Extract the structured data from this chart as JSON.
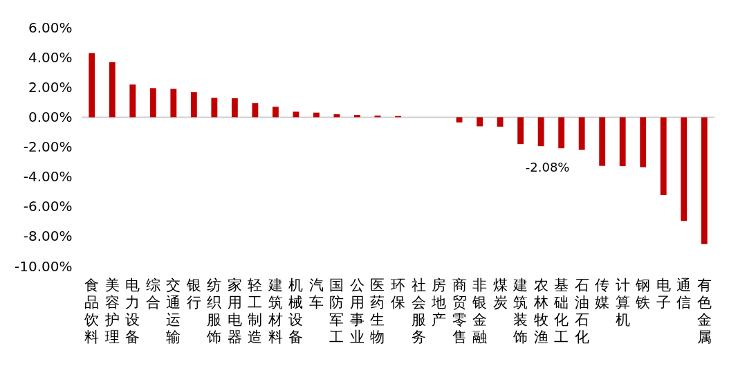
{
  "chart_data": {
    "type": "bar",
    "categories": [
      "食品饮料",
      "美容护理",
      "电力设备",
      "综合",
      "交通运输",
      "银行",
      "纺织服饰",
      "家用电器",
      "轻工制造",
      "建筑材料",
      "机械设备",
      "汽车",
      "国防军工",
      "公用事业",
      "医药生物",
      "环保",
      "社会服务",
      "房地产",
      "商贸零售",
      "非银金融",
      "煤炭",
      "建筑装饰",
      "农林牧渔",
      "基础化工",
      "石油石化",
      "传媒",
      "计算机",
      "钢铁",
      "电子",
      "通信",
      "有色金属"
    ],
    "values": [
      4.29,
      3.69,
      2.19,
      1.95,
      1.9,
      1.68,
      1.3,
      1.27,
      0.94,
      0.7,
      0.37,
      0.31,
      0.2,
      0.15,
      0.11,
      0.08,
      0,
      0,
      -0.35,
      -0.61,
      -0.64,
      -1.8,
      -1.94,
      -2.08,
      -2.19,
      -3.26,
      -3.28,
      -3.35,
      -5.22,
      -6.95,
      -8.51
    ],
    "color": "#c00000",
    "ylim": [
      -10,
      6
    ],
    "yticks": [
      {
        "value": 6,
        "label": "6.00%"
      },
      {
        "value": 4,
        "label": "4.00%"
      },
      {
        "value": 2,
        "label": "2.00%"
      },
      {
        "value": 0,
        "label": "0.00%"
      },
      {
        "value": -2,
        "label": "-2.00%"
      },
      {
        "value": -4,
        "label": "-4.00%"
      },
      {
        "value": -6,
        "label": "-6.00%"
      },
      {
        "value": -8,
        "label": "-8.00%"
      },
      {
        "value": -10,
        "label": "-10.00%"
      }
    ],
    "annotations": [
      {
        "text": "-2.08%",
        "x": "基础化工",
        "y": -2.08
      }
    ],
    "ref_lines": [
      {
        "axis": "y",
        "value": 0,
        "color": "#d0d0d0"
      }
    ],
    "grid": false
  }
}
